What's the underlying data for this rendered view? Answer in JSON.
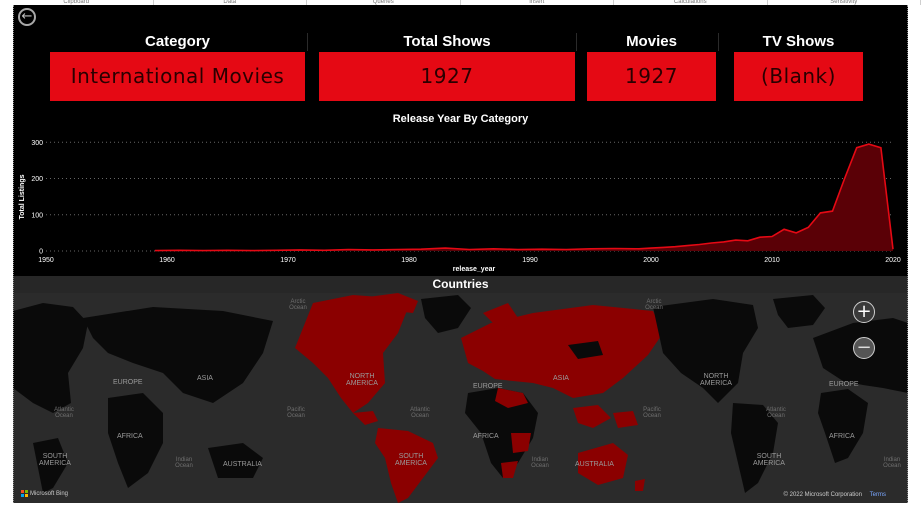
{
  "ribbon": {
    "items": [
      "Clipboard",
      "Data",
      "Queries",
      "Insert",
      "Calculations",
      "Sensitivity"
    ]
  },
  "nav": {
    "back_icon": "back-arrow-icon",
    "back_glyph": "←"
  },
  "cards": [
    {
      "title": "Category",
      "value": "International Movies"
    },
    {
      "title": "Total Shows",
      "value": "1927"
    },
    {
      "title": "Movies",
      "value": "1927"
    },
    {
      "title": "TV Shows",
      "value": "(Blank)"
    }
  ],
  "chart_data": {
    "type": "area",
    "title": "Release Year By Category",
    "xlabel": "release_year",
    "ylabel": "Total Listings",
    "xlim": [
      1950,
      2020
    ],
    "ylim": [
      0,
      320
    ],
    "x_ticks": [
      1950,
      1960,
      1970,
      1980,
      1990,
      2000,
      2010,
      2020
    ],
    "y_ticks": [
      0,
      100,
      200,
      300
    ],
    "grid": true,
    "color": "#e50914",
    "series": [
      {
        "x": [
          1959,
          1961,
          1963,
          1965,
          1967,
          1969,
          1971,
          1973,
          1975,
          1977,
          1979,
          1981,
          1983,
          1985,
          1987,
          1989,
          1991,
          1993,
          1995,
          1997,
          1999,
          2000,
          2001,
          2002,
          2003,
          2004,
          2005,
          2006,
          2007,
          2008,
          2009,
          2010,
          2011,
          2012,
          2013,
          2014,
          2015,
          2016,
          2017,
          2018,
          2019,
          2020
        ],
        "values": [
          1,
          2,
          1,
          2,
          1,
          2,
          3,
          2,
          4,
          3,
          4,
          5,
          8,
          4,
          6,
          4,
          5,
          4,
          6,
          7,
          6,
          8,
          10,
          12,
          15,
          18,
          22,
          25,
          30,
          28,
          38,
          40,
          60,
          50,
          65,
          105,
          110,
          200,
          285,
          295,
          285,
          5
        ]
      }
    ]
  },
  "map": {
    "title": "Countries",
    "zoom_in": "+",
    "zoom_out": "−",
    "attribution": "Microsoft Bing",
    "copyright": "© 2022 Microsoft Corporation",
    "terms": "Terms",
    "labels": {
      "europe": "EUROPE",
      "asia": "ASIA",
      "africa": "AFRICA",
      "australia": "AUSTRALIA",
      "south_america": "SOUTH AMERICA",
      "north_america": "NORTH AMERICA",
      "arctic_ocean": "Arctic Ocean",
      "atlantic_ocean": "Atlantic Ocean",
      "pacific_ocean": "Pacific Ocean",
      "indian_ocean": "Indian Ocean"
    },
    "colors": {
      "land": "#0a0a0a",
      "highlight": "#8b0000",
      "water": "#2b2b2b"
    }
  }
}
